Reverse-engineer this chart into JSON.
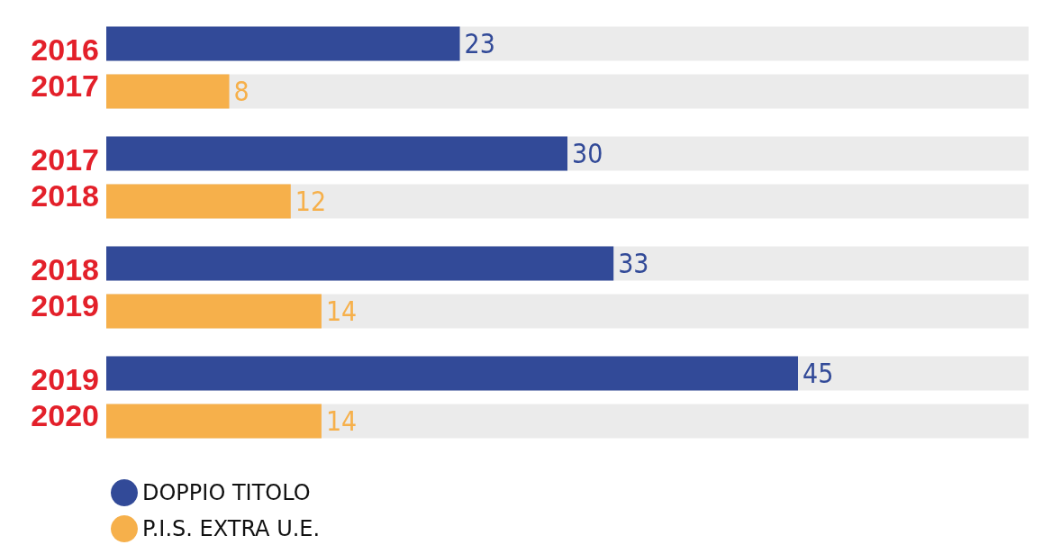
{
  "chart_data": {
    "type": "bar",
    "orientation": "horizontal",
    "categories": [
      "2016\n2017",
      "2017\n2018",
      "2018\n2019",
      "2019\n2020"
    ],
    "series": [
      {
        "name": "DOPPIO TITOLO",
        "color": "#324a98",
        "values": [
          23,
          30,
          33,
          45
        ]
      },
      {
        "name": "P.I.S. EXTRA U.E.",
        "color": "#f6b04b",
        "values": [
          8,
          12,
          14,
          14
        ]
      }
    ],
    "data_labels": true,
    "legend": "bottom left"
  }
}
